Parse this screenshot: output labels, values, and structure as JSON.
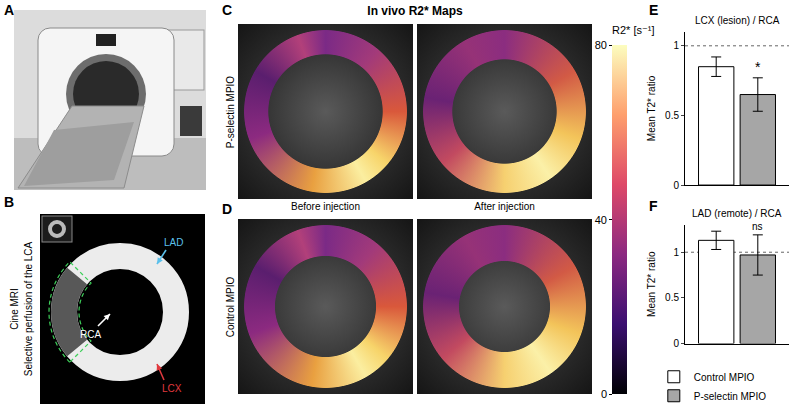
{
  "figure": {
    "panels": {
      "A": {
        "label": "A"
      },
      "B": {
        "label": "B",
        "side_labels": [
          "Cine MRI",
          "Selective perfusion of the LCA"
        ],
        "markers": [
          {
            "text": "LAD",
            "color": "#5bc0eb"
          },
          {
            "text": "RCA",
            "color": "#ffffff"
          },
          {
            "text": "LCX",
            "color": "#e0393e"
          }
        ]
      },
      "C": {
        "label": "C",
        "title": "In vivo R2* Maps",
        "row_label": "P-selectin MPIO"
      },
      "D": {
        "label": "D",
        "row_label": "Control MPIO"
      }
    },
    "columns": [
      "Before injection",
      "After injection"
    ],
    "colorbar": {
      "title": "R2* [s⁻¹]",
      "range": [
        0,
        80
      ],
      "ticks": [
        0,
        40,
        80
      ]
    }
  },
  "chart_data": [
    {
      "label": "E",
      "type": "bar",
      "title": "LCX (lesion) / RCA",
      "y_label": "Mean T2* ratio",
      "categories": [
        null
      ],
      "series": [
        {
          "name": "Control MPIO",
          "color": "#ffffff",
          "values": [
            0.85
          ],
          "errors": [
            0.07
          ]
        },
        {
          "name": "P-selectin MPIO",
          "color": "#a6a6a6",
          "values": [
            0.65
          ],
          "errors": [
            0.12
          ]
        }
      ],
      "ylim": [
        0,
        1.1
      ],
      "yticks": [
        0,
        0.5,
        1
      ],
      "reference_line": 1,
      "annotations": [
        {
          "text": "*",
          "series": 1
        }
      ],
      "tick_labels": "y",
      "grid": false
    },
    {
      "label": "F",
      "type": "bar",
      "title": "LAD (remote) / RCA",
      "y_label": "Mean T2* ratio",
      "categories": [
        null
      ],
      "series": [
        {
          "name": "Control MPIO",
          "color": "#ffffff",
          "values": [
            1.13
          ],
          "errors": [
            0.1
          ]
        },
        {
          "name": "P-selectin MPIO",
          "color": "#a6a6a6",
          "values": [
            0.97
          ],
          "errors": [
            0.22
          ]
        }
      ],
      "ylim": [
        0,
        1.3
      ],
      "yticks": [
        0,
        0.5,
        1
      ],
      "reference_line": 1,
      "annotations": [
        {
          "text": "ns",
          "series": 1
        }
      ],
      "tick_labels": "y",
      "grid": false,
      "legend": "bottom"
    }
  ]
}
